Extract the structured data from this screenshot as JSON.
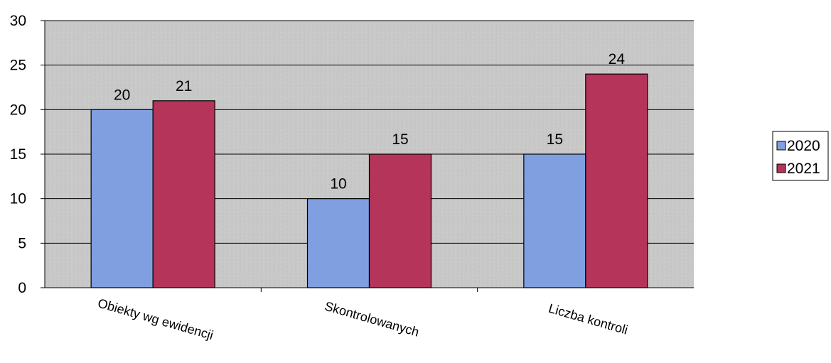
{
  "chart_data": {
    "type": "bar",
    "categories": [
      "Obiekty wg ewidencji",
      "Skontrolowanych",
      "Liczba kontroli"
    ],
    "series": [
      {
        "name": "2020",
        "values": [
          20,
          10,
          15
        ],
        "color": "#7f9fe0"
      },
      {
        "name": "2021",
        "values": [
          21,
          15,
          24
        ],
        "color": "#b5345a"
      }
    ],
    "ylim": [
      0,
      30
    ],
    "yticks": [
      0,
      5,
      10,
      15,
      20,
      25,
      30
    ],
    "grid": true,
    "legend": "right",
    "plot_background": "#c8c8c8"
  }
}
